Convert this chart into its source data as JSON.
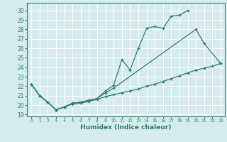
{
  "xlabel": "Humidex (Indice chaleur)",
  "bg_color": "#d6ecec",
  "line_color": "#2e7d6e",
  "grid_color": "#ffffff",
  "xlim": [
    -0.5,
    23.5
  ],
  "ylim": [
    18.8,
    30.8
  ],
  "xticks": [
    0,
    1,
    2,
    3,
    4,
    5,
    6,
    7,
    8,
    9,
    10,
    11,
    12,
    13,
    14,
    15,
    16,
    17,
    18,
    19,
    20,
    21,
    22,
    23
  ],
  "yticks": [
    19,
    20,
    21,
    22,
    23,
    24,
    25,
    26,
    27,
    28,
    29,
    30
  ],
  "line1_x": [
    0,
    1,
    2,
    3,
    4,
    5,
    6,
    7,
    8,
    9,
    10,
    11,
    12,
    13,
    14,
    15,
    16,
    17,
    18,
    19
  ],
  "line1_y": [
    22.2,
    21.0,
    20.3,
    19.5,
    19.8,
    20.2,
    20.3,
    20.5,
    20.7,
    21.5,
    22.1,
    24.8,
    23.7,
    26.0,
    28.1,
    28.3,
    28.1,
    29.4,
    29.5,
    30.0
  ],
  "line2_x": [
    0,
    1,
    2,
    3,
    4,
    5,
    6,
    7,
    8,
    9,
    10,
    20,
    21,
    23
  ],
  "line2_y": [
    22.2,
    21.0,
    20.3,
    19.5,
    19.8,
    20.2,
    20.3,
    20.5,
    20.7,
    21.3,
    21.8,
    28.0,
    26.5,
    24.4
  ],
  "line3_x": [
    0,
    1,
    2,
    3,
    4,
    5,
    6,
    7,
    8,
    9,
    10,
    11,
    12,
    13,
    14,
    15,
    16,
    17,
    18,
    19,
    20,
    21,
    22,
    23
  ],
  "line3_y": [
    22.2,
    21.0,
    20.3,
    19.5,
    19.8,
    20.1,
    20.2,
    20.4,
    20.6,
    20.9,
    21.1,
    21.3,
    21.5,
    21.7,
    22.0,
    22.2,
    22.5,
    22.8,
    23.1,
    23.4,
    23.7,
    23.9,
    24.1,
    24.4
  ]
}
